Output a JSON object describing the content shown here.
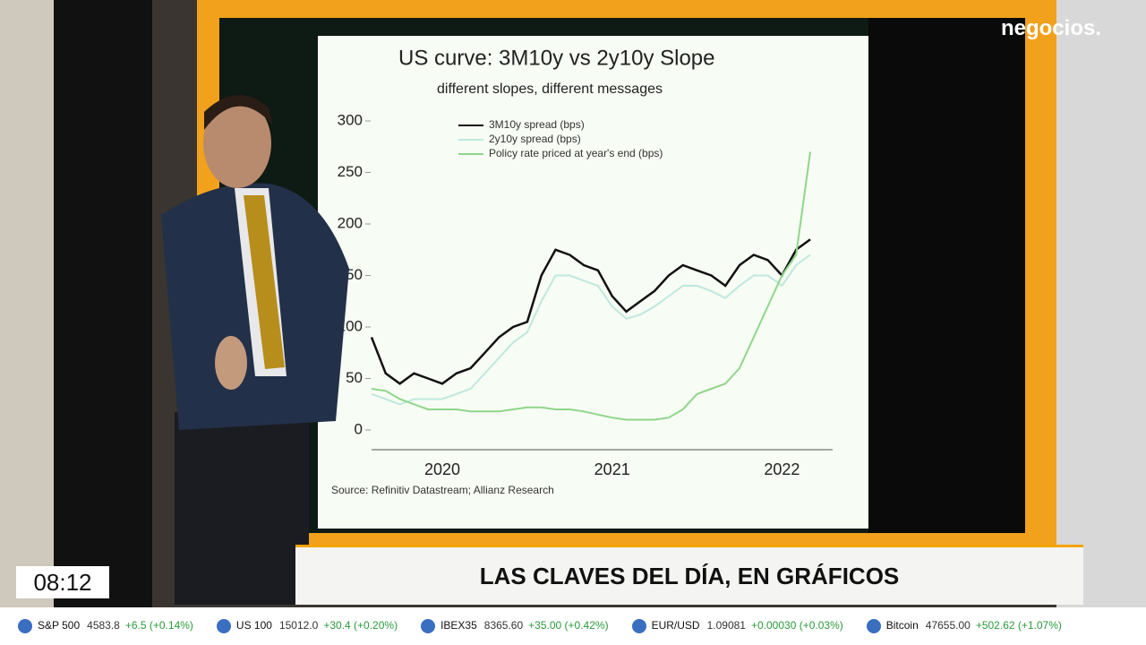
{
  "logo": "negocios.",
  "chart_data": {
    "type": "line",
    "title": "US curve: 3M10y vs 2y10y Slope",
    "subtitle": "different slopes, different messages",
    "source": "Source: Refinitiv Datastream; Allianz Research",
    "categories": [
      null,
      null,
      null,
      null,
      null,
      "2020",
      null,
      null,
      null,
      null,
      null,
      null,
      null,
      null,
      null,
      null,
      null,
      "2021",
      null,
      null,
      null,
      null,
      null,
      null,
      null,
      null,
      null,
      null,
      null,
      "2022",
      null,
      null
    ],
    "series": [
      {
        "name": "3M10y spread (bps)",
        "color": "#111111",
        "values": [
          90,
          55,
          45,
          55,
          50,
          45,
          55,
          60,
          75,
          90,
          100,
          105,
          150,
          175,
          170,
          160,
          155,
          130,
          115,
          125,
          135,
          150,
          160,
          155,
          150,
          140,
          160,
          170,
          165,
          150,
          175,
          185
        ]
      },
      {
        "name": "2y10y spread (bps)",
        "color": "#bfe8df",
        "values": [
          35,
          30,
          25,
          30,
          30,
          30,
          35,
          40,
          55,
          70,
          85,
          95,
          125,
          150,
          150,
          145,
          140,
          120,
          108,
          112,
          120,
          130,
          140,
          140,
          135,
          128,
          140,
          150,
          150,
          140,
          160,
          170
        ]
      },
      {
        "name": "Policy rate priced at year's end (bps)",
        "color": "#8fd68a",
        "values": [
          40,
          38,
          30,
          25,
          20,
          20,
          20,
          18,
          18,
          18,
          20,
          22,
          22,
          20,
          20,
          18,
          15,
          12,
          10,
          10,
          10,
          12,
          20,
          35,
          40,
          45,
          60,
          90,
          120,
          150,
          170,
          270
        ]
      }
    ],
    "ylim": [
      0,
      300
    ],
    "yticks": [
      0,
      50,
      100,
      150,
      200,
      250,
      300
    ]
  },
  "headline": "LAS CLAVES DEL DÍA, EN GRÁFICOS",
  "clock": "08:12",
  "ticker": [
    {
      "name": "S&P 500",
      "value": "4583.8",
      "change": "+6.5 (+0.14%)"
    },
    {
      "name": "US 100",
      "value": "15012.0",
      "change": "+30.4 (+0.20%)"
    },
    {
      "name": "IBEX35",
      "value": "8365.60",
      "change": "+35.00 (+0.42%)"
    },
    {
      "name": "EUR/USD",
      "value": "1.09081",
      "change": "+0.00030 (+0.03%)"
    },
    {
      "name": "Bitcoin",
      "value": "47655.00",
      "change": "+502.62 (+1.07%)"
    }
  ]
}
